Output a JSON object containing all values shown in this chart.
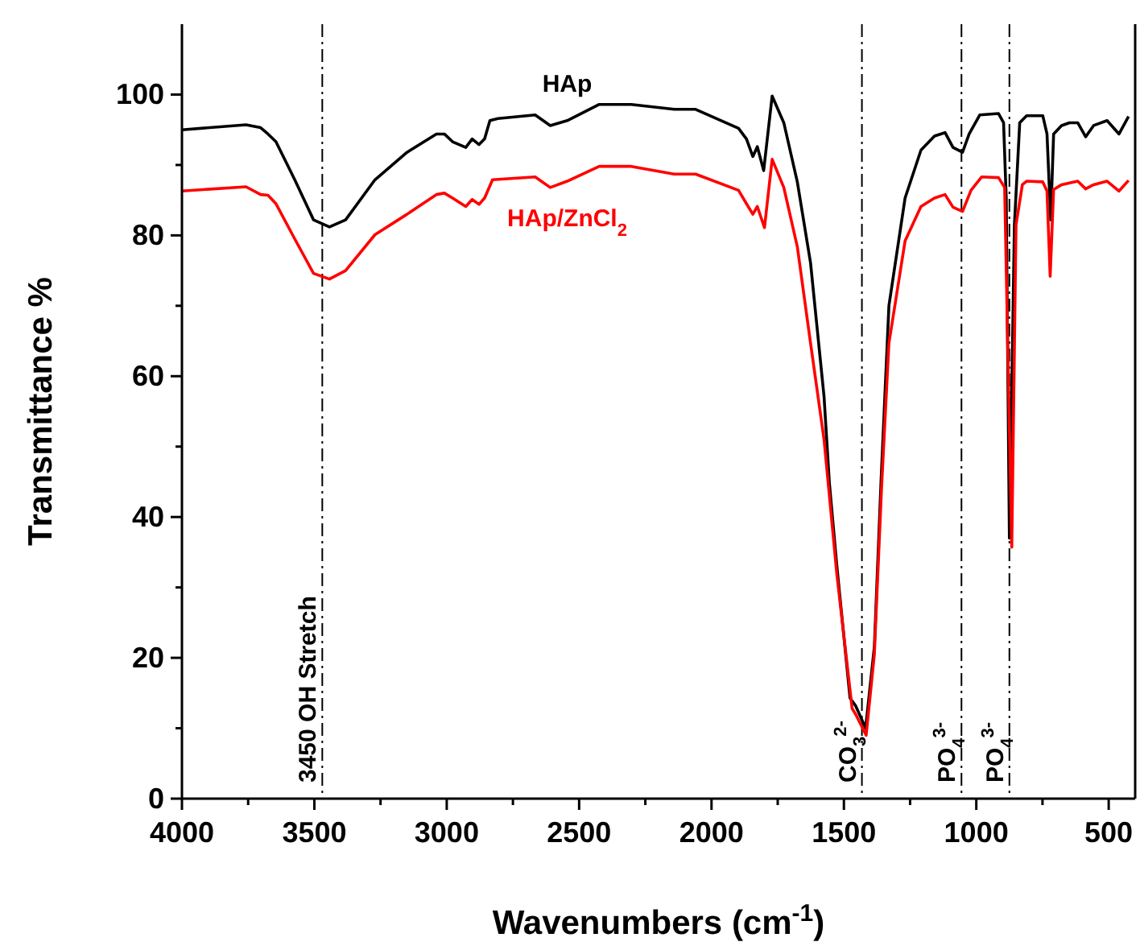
{
  "chart_data": {
    "type": "line",
    "xlabel": "Wavenumbers (cm$^{-1}$)",
    "ylabel": "Transmittance %",
    "xlim": [
      4000,
      400
    ],
    "ylim": [
      0,
      110
    ],
    "xticks": [
      4000,
      {
        "value": 3750,
        "label": null
      },
      3500,
      {
        "value": 3250,
        "label": null
      },
      3000,
      {
        "value": 2750,
        "label": null
      },
      2500,
      {
        "value": 2250,
        "label": null
      },
      2000,
      {
        "value": 1750,
        "label": null
      },
      1500,
      {
        "value": 1250,
        "label": null
      },
      1000,
      {
        "value": 750,
        "label": null
      },
      500
    ],
    "yticks": [
      0,
      {
        "value": 10,
        "label": null
      },
      20,
      {
        "value": 30,
        "label": null
      },
      40,
      {
        "value": 50,
        "label": null
      },
      60,
      {
        "value": 70,
        "label": null
      },
      80,
      {
        "value": 90,
        "label": null
      },
      100
    ],
    "grid": false,
    "legend": false,
    "marker": "none",
    "line_style": "solid",
    "series": [
      {
        "name": "HAp",
        "color": "#000000",
        "x": [
          4000,
          3758,
          3703,
          3675,
          3645,
          3574,
          3503,
          3443,
          3382,
          3271,
          3150,
          3039,
          3009,
          2978,
          2928,
          2904,
          2878,
          2857,
          2837,
          2807,
          2666,
          2636,
          2609,
          2545,
          2424,
          2303,
          2141,
          2060,
          1898,
          1868,
          1844,
          1827,
          1803,
          1771,
          1727,
          1676,
          1626,
          1575,
          1555,
          1527,
          1477,
          1456,
          1418,
          1385,
          1360,
          1330,
          1269,
          1209,
          1158,
          1118,
          1088,
          1052,
          1027,
          987,
          916,
          897,
          887,
          875,
          856,
          836,
          810,
          749,
          733,
          719,
          708,
          678,
          648,
          617,
          587,
          557,
          506,
          461,
          425
        ],
        "values": [
          95.0,
          95.7,
          95.3,
          94.4,
          93.3,
          87.9,
          82.2,
          81.2,
          82.2,
          87.9,
          91.8,
          94.4,
          94.4,
          93.3,
          92.5,
          93.7,
          92.9,
          93.7,
          96.3,
          96.6,
          97.1,
          96.3,
          95.6,
          96.3,
          98.6,
          98.6,
          97.9,
          97.9,
          95.2,
          93.7,
          91.2,
          92.6,
          89.2,
          99.8,
          96.0,
          87.6,
          76.1,
          57.1,
          44.9,
          33.2,
          14.3,
          13.2,
          10,
          21.6,
          44.9,
          70.0,
          85.3,
          92.1,
          94.1,
          94.6,
          92.5,
          91.8,
          94.4,
          97.1,
          97.3,
          96.0,
          85.3,
          37,
          81.5,
          96.0,
          97.0,
          97.0,
          94.4,
          82.2,
          94.4,
          95.6,
          96.0,
          96.0,
          94.0,
          95.6,
          96.3,
          94.4,
          96.9
        ]
      },
      {
        "name": "HAp/ZnCl$_{2}$",
        "color": "#ff0000",
        "x": [
          4000,
          3758,
          3703,
          3675,
          3645,
          3574,
          3503,
          3443,
          3382,
          3271,
          3150,
          3039,
          3009,
          2978,
          2928,
          2904,
          2878,
          2857,
          2827,
          2666,
          2609,
          2545,
          2424,
          2303,
          2141,
          2060,
          1898,
          1868,
          1844,
          1827,
          1800,
          1771,
          1727,
          1676,
          1626,
          1575,
          1527,
          1469,
          1456,
          1416,
          1385,
          1358,
          1330,
          1269,
          1209,
          1158,
          1118,
          1088,
          1052,
          1020,
          980,
          916,
          893,
          866,
          850,
          826,
          810,
          749,
          733,
          721,
          708,
          678,
          617,
          587,
          557,
          506,
          461,
          425
        ],
        "values": [
          86.3,
          86.9,
          85.8,
          85.7,
          84.5,
          79.5,
          74.6,
          73.8,
          75.0,
          80.1,
          83.0,
          85.8,
          86.0,
          85.3,
          84.1,
          85.1,
          84.4,
          85.3,
          87.9,
          88.3,
          86.8,
          87.7,
          89.8,
          89.8,
          88.7,
          88.7,
          86.4,
          84.5,
          83.0,
          84.1,
          81.1,
          90.8,
          86.8,
          78.4,
          64.7,
          51.0,
          32,
          12.8,
          12,
          9,
          20.5,
          44,
          64.7,
          79.2,
          84.1,
          85.3,
          85.8,
          84.0,
          83.4,
          86.4,
          88.3,
          88.2,
          86.8,
          35.7,
          81.5,
          87.2,
          87.7,
          87.6,
          86.3,
          74.2,
          86.5,
          87.2,
          87.7,
          86.6,
          87.2,
          87.7,
          86.3,
          87.8
        ]
      }
    ],
    "ref_lines": [
      {
        "axis": "x",
        "value": 3470,
        "label": "3450 OH Stretch",
        "line_style": "dashed",
        "color": "#000000"
      },
      {
        "axis": "x",
        "value": 1432,
        "label": "CO$_{3}$$^{2-}$",
        "line_style": "dashed",
        "color": "#000000"
      },
      {
        "axis": "x",
        "value": 1056,
        "label": "PO$_{4}$$^{3-}$",
        "line_style": "dashed",
        "color": "#000000"
      },
      {
        "axis": "x",
        "value": 875,
        "label": "PO$_{4}$$^{3-}$",
        "line_style": "dashed",
        "color": "#000000"
      }
    ]
  }
}
